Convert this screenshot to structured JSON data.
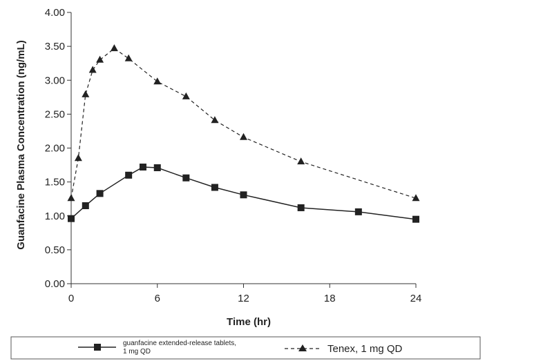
{
  "chart_data": {
    "type": "line",
    "title": "",
    "xlabel": "Time (hr)",
    "ylabel": "Guanfacine Plasma Concentration (ng/mL)",
    "xlim": [
      0,
      24
    ],
    "ylim": [
      0,
      4
    ],
    "xticks": [
      0,
      6,
      12,
      18,
      24
    ],
    "xtick_labels": [
      "0",
      "6",
      "12",
      "18",
      "24"
    ],
    "yticks": [
      0,
      0.5,
      1,
      1.5,
      2,
      2.5,
      3,
      3.5,
      4
    ],
    "ytick_labels": [
      "0.00",
      "0.50",
      "1.00",
      "1.50",
      "2.00",
      "2.50",
      "3.00",
      "3.50",
      "4.00"
    ],
    "grid": false,
    "legend_position": "bottom",
    "series": [
      {
        "name_line1": "guanfacine extended-release tablets,",
        "name_line2": "1 mg QD",
        "marker": "square",
        "line_style": "solid",
        "color": "#222222",
        "x": [
          0,
          1,
          2,
          4,
          5,
          6,
          8,
          10,
          12,
          16,
          20,
          24
        ],
        "y": [
          0.96,
          1.15,
          1.33,
          1.6,
          1.72,
          1.71,
          1.56,
          1.42,
          1.31,
          1.12,
          1.06,
          0.95
        ]
      },
      {
        "name_line1": "Tenex, 1 mg QD",
        "marker": "triangle",
        "line_style": "dashed",
        "color": "#222222",
        "x": [
          0,
          0.5,
          1,
          1.5,
          2,
          3,
          4,
          6,
          8,
          10,
          12,
          16,
          24
        ],
        "y": [
          1.26,
          1.85,
          2.79,
          3.15,
          3.3,
          3.47,
          3.32,
          2.98,
          2.76,
          2.41,
          2.16,
          1.8,
          1.26
        ]
      }
    ]
  }
}
